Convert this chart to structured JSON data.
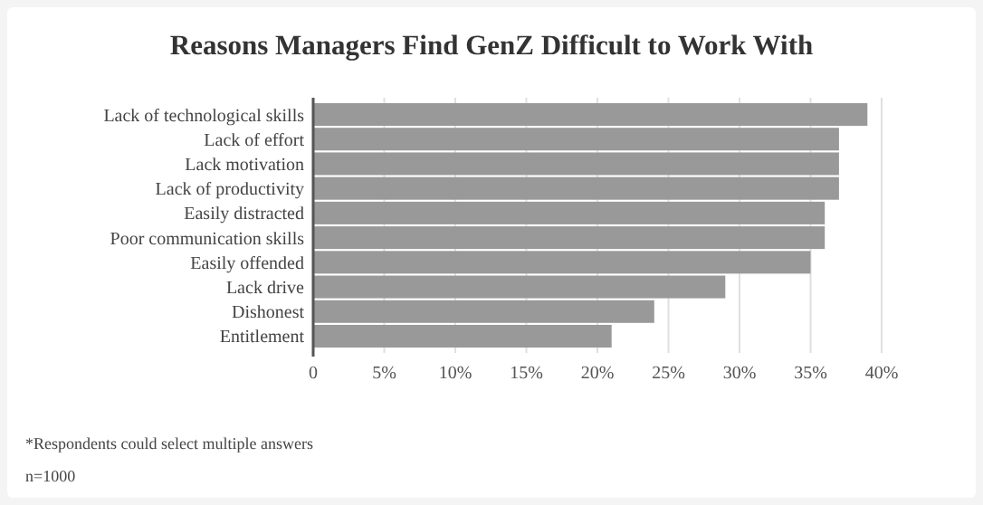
{
  "chart_data": {
    "type": "bar",
    "orientation": "horizontal",
    "title": "Reasons Managers Find GenZ Difficult to Work With",
    "categories": [
      "Lack of technological skills",
      "Lack of effort",
      "Lack motivation",
      "Lack of productivity",
      "Easily distracted",
      "Poor communication skills",
      "Easily offended",
      "Lack drive",
      "Dishonest",
      "Entitlement"
    ],
    "values": [
      39,
      37,
      37,
      37,
      36,
      36,
      35,
      29,
      24,
      21
    ],
    "color": "#999999",
    "xlim": [
      0,
      40
    ],
    "xticks": [
      0,
      {
        "value": 5,
        "label": "5%"
      },
      {
        "value": 10,
        "label": "10%"
      },
      {
        "value": 15,
        "label": "15%"
      },
      {
        "value": 20,
        "label": "20%"
      },
      {
        "value": 25,
        "label": "25%"
      },
      {
        "value": 30,
        "label": "30%"
      },
      {
        "value": 35,
        "label": "35%"
      },
      {
        "value": 40,
        "label": "40%"
      }
    ],
    "grid": "x",
    "annotations": [
      "*Respondents could select multiple answers",
      "n=1000"
    ]
  }
}
